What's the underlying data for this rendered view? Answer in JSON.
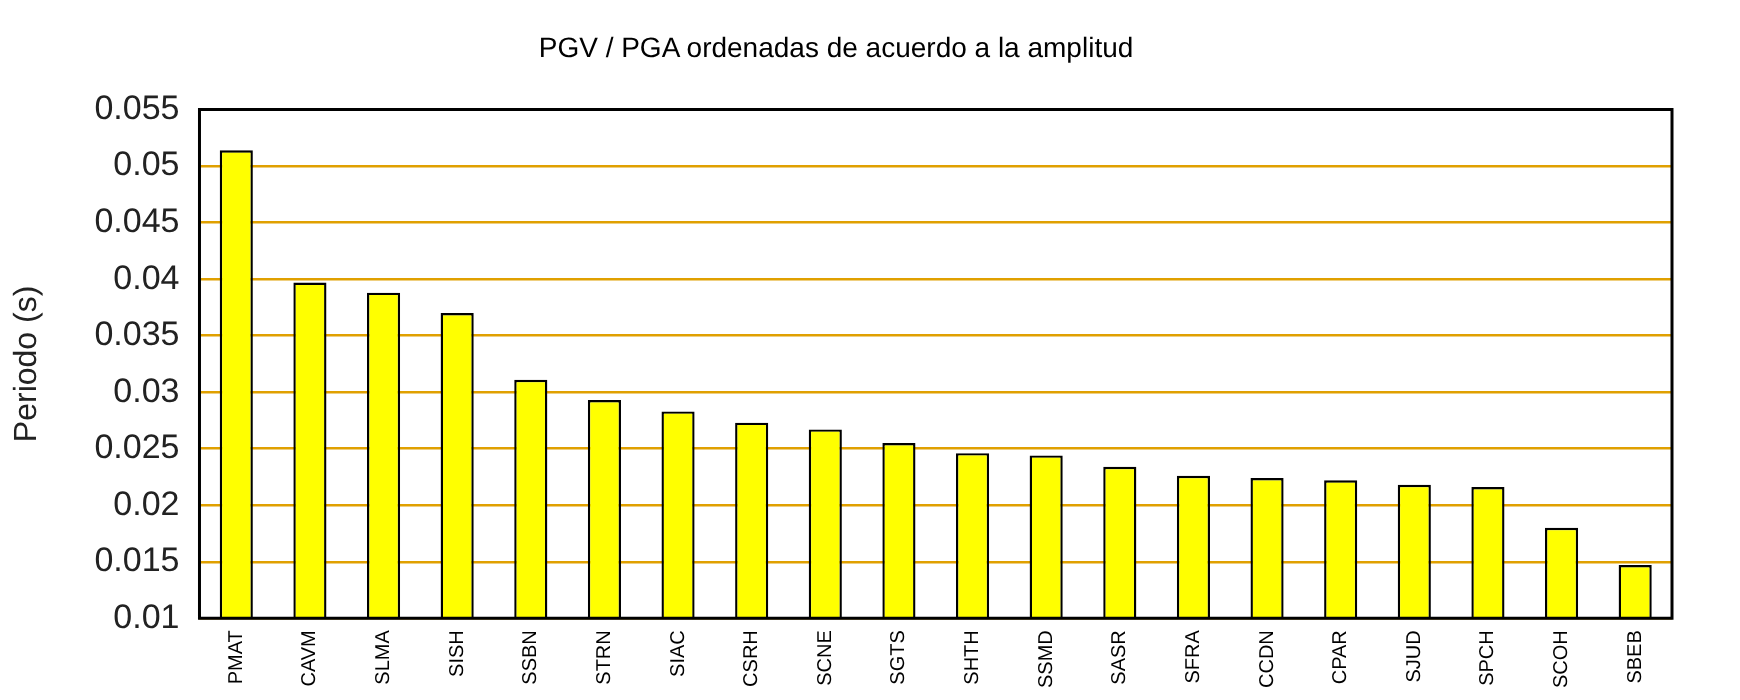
{
  "chart_data": {
    "type": "bar",
    "title": "PGV / PGA ordenadas de acuerdo a la amplitud",
    "ylabel": "Periodo (s)",
    "categories": [
      "PMAT",
      "CAVM",
      "SLMA",
      "SISH",
      "SSBN",
      "STRN",
      "SIAC",
      "CSRH",
      "SCNE",
      "SGTS",
      "SHTH",
      "SSMD",
      "SASR",
      "SFRA",
      "CCDN",
      "CPAR",
      "SJUD",
      "SPCH",
      "SCOH",
      "SBEB"
    ],
    "values": [
      0.0514,
      0.0397,
      0.0388,
      0.037,
      0.0311,
      0.0293,
      0.0283,
      0.0273,
      0.0267,
      0.0255,
      0.0246,
      0.0244,
      0.0234,
      0.0226,
      0.0224,
      0.0222,
      0.0218,
      0.0216,
      0.018,
      0.0147
    ],
    "color": "#ffff00",
    "ylim": [
      0.01,
      0.055
    ],
    "yticks": [
      0.01,
      0.015,
      0.02,
      0.025,
      0.03,
      0.035,
      0.04,
      0.045,
      0.05,
      0.055
    ],
    "grid": "y",
    "legend": false
  }
}
